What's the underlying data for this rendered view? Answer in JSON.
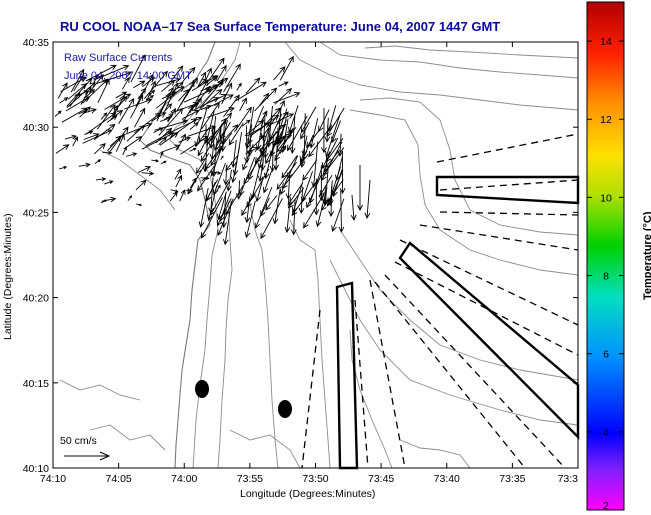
{
  "chart_data": {
    "type": "contour-map",
    "title": "RU COOL   NOAA–17  Sea Surface Temperature:  June 04, 2007 1447 GMT",
    "annotations": [
      "Raw Surface Currents",
      "June 04, 2007 14:00 GMT"
    ],
    "xlabel": "Longitude (Degrees:Minutes)",
    "ylabel": "Latitude (Degrees:Minutes)",
    "x_ticks": [
      "74:10",
      "74:05",
      "74:00",
      "73:55",
      "73:50",
      "73:45",
      "73:40",
      "73:35",
      "73:3"
    ],
    "y_ticks": [
      "40:35",
      "40:30",
      "40:25",
      "40:20",
      "40:15",
      "40:10"
    ],
    "xlim_minutes_west": [
      4450,
      4410
    ],
    "ylim_minutes_north": [
      2410,
      2435
    ],
    "scale_vector_label": "50 cm/s",
    "colorbar": {
      "label": "Temperature (°C)",
      "ticks": [
        "14",
        "12",
        "10",
        "8",
        "6",
        "4",
        "2"
      ],
      "range": [
        2,
        15
      ]
    },
    "markers": [
      {
        "lon": "73:58.8",
        "lat": "40:14.7"
      },
      {
        "lon": "73:52.3",
        "lat": "40:13.5"
      }
    ]
  }
}
